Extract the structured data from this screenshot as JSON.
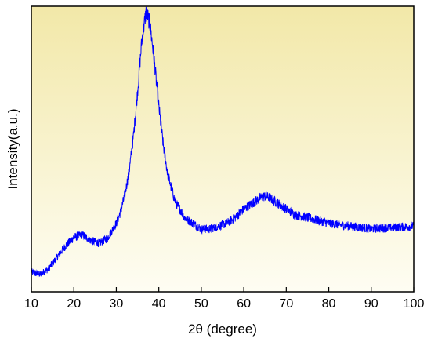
{
  "chart_data": {
    "type": "line",
    "title": "",
    "xlabel": "2θ (degree)",
    "ylabel": "Intensity(a.u.)",
    "xlim": [
      10,
      100
    ],
    "ylim": [
      0,
      100
    ],
    "xticks": [
      10,
      20,
      30,
      40,
      50,
      60,
      70,
      80,
      90,
      100
    ],
    "grid": false,
    "legend": "none",
    "background_gradient": [
      "#f2e8a8",
      "#fefdf3"
    ],
    "series": [
      {
        "color": "#0000ff",
        "points": [
          [
            10,
            7
          ],
          [
            12,
            6
          ],
          [
            14,
            8
          ],
          [
            16,
            12
          ],
          [
            18,
            16
          ],
          [
            20,
            19
          ],
          [
            22,
            20
          ],
          [
            24,
            18
          ],
          [
            26,
            17
          ],
          [
            28,
            19
          ],
          [
            30,
            24
          ],
          [
            31,
            28
          ],
          [
            32,
            34
          ],
          [
            33,
            42
          ],
          [
            34,
            54
          ],
          [
            35,
            70
          ],
          [
            36,
            88
          ],
          [
            37,
            98
          ],
          [
            37.5,
            96
          ],
          [
            38,
            93
          ],
          [
            39,
            80
          ],
          [
            40,
            65
          ],
          [
            41,
            52
          ],
          [
            42,
            42
          ],
          [
            43,
            36
          ],
          [
            44,
            31
          ],
          [
            45,
            29
          ],
          [
            46,
            26
          ],
          [
            48,
            24
          ],
          [
            50,
            22
          ],
          [
            52,
            22
          ],
          [
            54,
            23
          ],
          [
            56,
            24
          ],
          [
            58,
            26
          ],
          [
            60,
            29
          ],
          [
            62,
            31
          ],
          [
            64,
            33
          ],
          [
            65,
            33.5
          ],
          [
            66,
            33
          ],
          [
            68,
            31
          ],
          [
            70,
            29
          ],
          [
            72,
            27
          ],
          [
            75,
            26
          ],
          [
            80,
            24
          ],
          [
            85,
            23
          ],
          [
            90,
            22
          ],
          [
            95,
            22.5
          ],
          [
            100,
            23
          ]
        ]
      }
    ]
  }
}
